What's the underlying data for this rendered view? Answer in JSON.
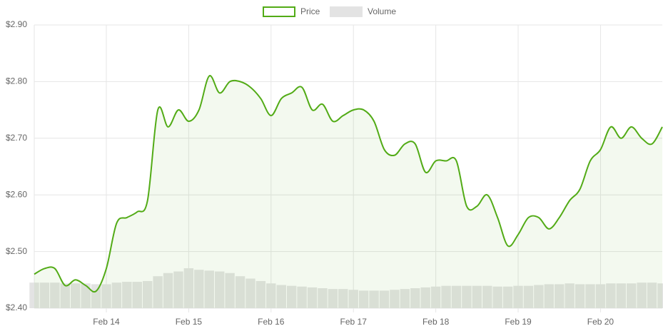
{
  "chart_data": {
    "type": "line",
    "categories": [
      null,
      null,
      null,
      null,
      null,
      null,
      null,
      "Feb 14",
      null,
      null,
      null,
      null,
      null,
      null,
      null,
      "Feb 15",
      null,
      null,
      null,
      null,
      null,
      null,
      null,
      "Feb 16",
      null,
      null,
      null,
      null,
      null,
      null,
      null,
      "Feb 17",
      null,
      null,
      null,
      null,
      null,
      null,
      null,
      "Feb 18",
      null,
      null,
      null,
      null,
      null,
      null,
      null,
      "Feb 19",
      null,
      null,
      null,
      null,
      null,
      null,
      null,
      "Feb 20",
      null,
      null,
      null,
      null,
      null,
      null
    ],
    "series": [
      {
        "name": "Price",
        "color": "#52ab16",
        "values": [
          2.46,
          2.47,
          2.47,
          2.44,
          2.45,
          2.44,
          2.43,
          2.47,
          2.55,
          2.56,
          2.57,
          2.59,
          2.75,
          2.72,
          2.75,
          2.73,
          2.75,
          2.81,
          2.78,
          2.8,
          2.8,
          2.79,
          2.77,
          2.74,
          2.77,
          2.78,
          2.79,
          2.75,
          2.76,
          2.73,
          2.74,
          2.75,
          2.75,
          2.73,
          2.68,
          2.67,
          2.69,
          2.69,
          2.64,
          2.66,
          2.66,
          2.66,
          2.58,
          2.58,
          2.6,
          2.56,
          2.51,
          2.53,
          2.56,
          2.56,
          2.54,
          2.56,
          2.59,
          2.61,
          2.66,
          2.68,
          2.72,
          2.7,
          2.72,
          2.7,
          2.69,
          2.72
        ]
      },
      {
        "name": "Volume",
        "color": "#e3e3e3",
        "values": [
          32,
          32,
          32,
          31,
          31,
          31,
          30,
          30,
          32,
          33,
          33,
          34,
          40,
          44,
          46,
          50,
          48,
          47,
          46,
          44,
          40,
          37,
          34,
          31,
          29,
          28,
          27,
          26,
          25,
          24,
          24,
          23,
          22,
          22,
          22,
          23,
          24,
          25,
          26,
          27,
          28,
          28,
          28,
          28,
          28,
          27,
          27,
          28,
          28,
          29,
          30,
          30,
          31,
          30,
          30,
          30,
          31,
          31,
          31,
          32,
          32,
          31
        ]
      }
    ],
    "ylim": [
      2.4,
      2.9
    ],
    "yticks": [
      {
        "value": 2.4,
        "label": "$2.40"
      },
      {
        "value": 2.5,
        "label": "$2.50"
      },
      {
        "value": 2.6,
        "label": "$2.60"
      },
      {
        "value": 2.7,
        "label": "$2.70"
      },
      {
        "value": 2.8,
        "label": "$2.80"
      },
      {
        "value": 2.9,
        "label": "$2.90"
      }
    ],
    "grid": true
  }
}
